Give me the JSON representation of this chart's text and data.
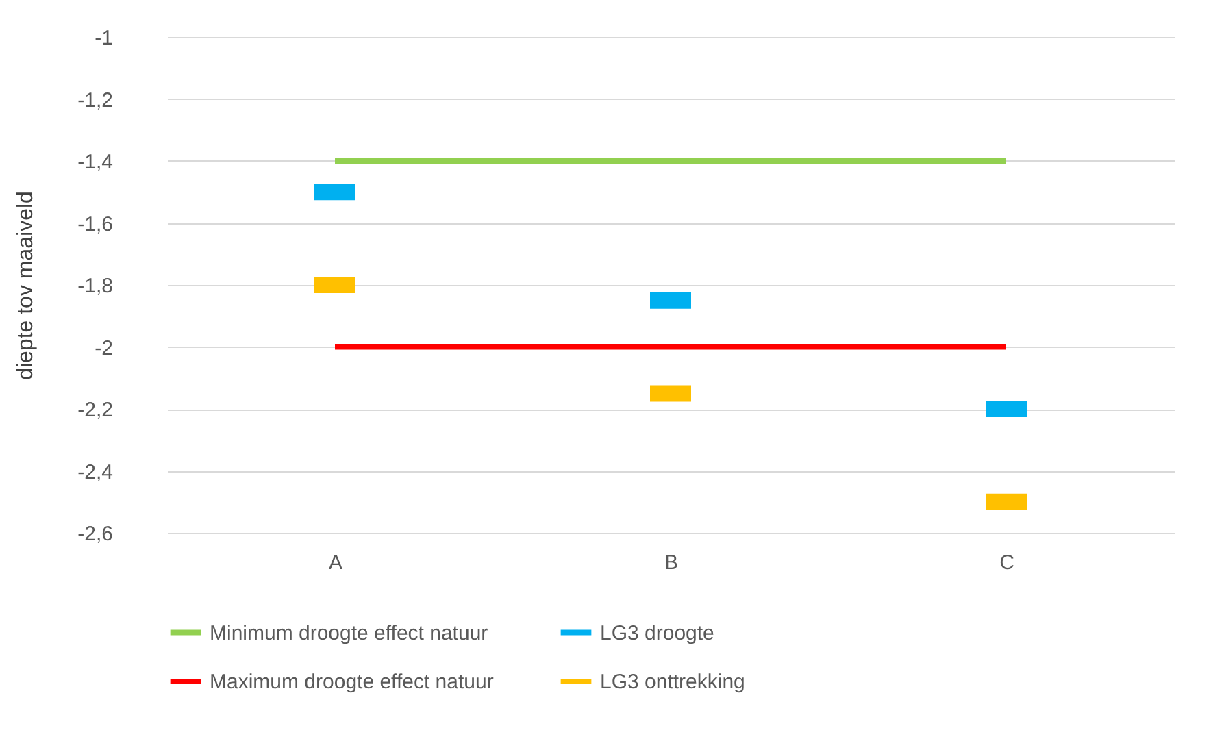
{
  "chart_data": {
    "type": "scatter",
    "ylabel": "diepte tov maaiveld",
    "categories": [
      "A",
      "B",
      "C"
    ],
    "series": [
      {
        "name": "Minimum droogte effect natuur",
        "type": "line",
        "color": "#92d050",
        "values": [
          -1.4,
          -1.4,
          -1.4
        ]
      },
      {
        "name": "LG3 droogte",
        "color": "#00b0f0",
        "values": [
          -1.5,
          -1.85,
          -2.2
        ]
      },
      {
        "name": "Maximum droogte effect natuur",
        "type": "line",
        "color": "#ff0000",
        "values": [
          -2.0,
          -2.0,
          -2.0
        ]
      },
      {
        "name": "LG3 onttrekking",
        "color": "#ffc000",
        "values": [
          -1.8,
          -2.15,
          -2.5
        ]
      }
    ],
    "ylim": [
      -2.6,
      -1.0
    ],
    "yticks": [
      {
        "value": -2.6,
        "label": "-2,6"
      },
      {
        "value": -2.4,
        "label": "-2,4"
      },
      {
        "value": -2.2,
        "label": "-2,2"
      },
      {
        "value": -2.0,
        "label": "-2"
      },
      {
        "value": -1.8,
        "label": "-1,8"
      },
      {
        "value": -1.6,
        "label": "-1,6"
      },
      {
        "value": -1.4,
        "label": "-1,4"
      },
      {
        "value": -1.2,
        "label": "-1,2"
      },
      {
        "value": -1.0,
        "label": "-1"
      }
    ],
    "grid": "y",
    "legend": "bottom"
  }
}
